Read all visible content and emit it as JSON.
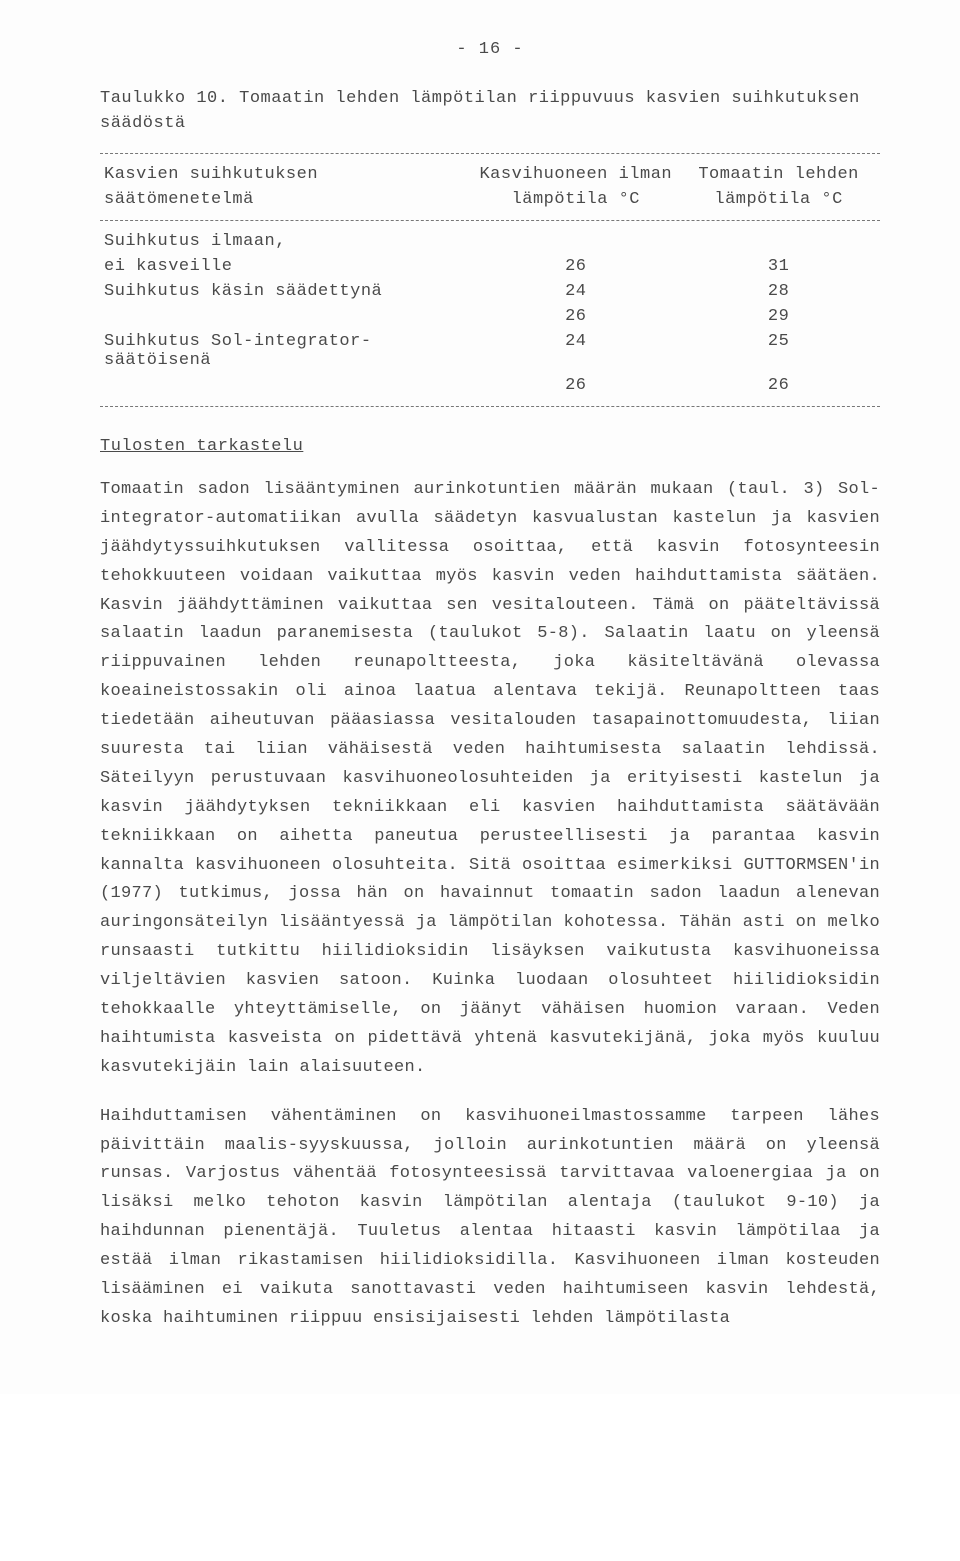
{
  "page_number": "- 16 -",
  "caption_line1": "Taulukko 10.  Tomaatin lehden lämpötilan riippuvuus kasvien suihkutuksen",
  "caption_line2": "säädöstä",
  "table": {
    "header": {
      "method_l1": "Kasvien suihkutuksen",
      "method_l2": "säätömenetelmä",
      "col1_l1": "Kasvihuoneen ilman",
      "col1_l2": "lämpötila °C",
      "col2_l1": "Tomaatin lehden",
      "col2_l2": "lämpötila °C"
    },
    "rows": [
      {
        "method": "Suihkutus ilmaan,",
        "v1": "",
        "v2": ""
      },
      {
        "method": "ei kasveille",
        "v1": "26",
        "v2": "31"
      },
      {
        "method": "Suihkutus käsin säädettynä",
        "v1": "24",
        "v2": "28"
      },
      {
        "method": "",
        "v1": "26",
        "v2": "29"
      },
      {
        "method": "Suihkutus Sol-integrator-säätöisenä",
        "v1": "24",
        "v2": "25"
      },
      {
        "method": "",
        "v1": "26",
        "v2": "26"
      }
    ]
  },
  "section_heading": "Tulosten tarkastelu",
  "para1": "Tomaatin sadon lisääntyminen aurinkotuntien määrän mukaan (taul. 3) Sol-integrator-automatiikan avulla säädetyn kasvualustan kastelun ja kasvien jäähdytyssuihkutuksen vallitessa osoittaa, että kasvin fotosynteesin tehokkuuteen voidaan vaikuttaa myös kasvin veden haihduttamista säätäen. Kasvin jäähdyttäminen vaikuttaa sen vesitalouteen. Tämä on pääteltävissä salaatin laadun paranemisesta (taulukot 5-8). Salaatin laatu on yleensä riippuvainen lehden reunapoltteesta, joka käsiteltävänä olevassa koeaineistossakin oli ainoa laatua alentava tekijä. Reunapoltteen taas tiedetään aiheutuvan pääasiassa vesitalouden tasapainottomuudesta, liian suuresta tai liian vähäisestä veden haihtumisesta salaatin lehdissä. Säteilyyn perustuvaan kasvihuoneolosuhteiden ja erityisesti kastelun ja kasvin jäähdytyksen tekniikkaan eli kasvien haihduttamista säätävään tekniikkaan on aihetta paneutua perusteellisesti ja parantaa kasvin kannalta kasvihuoneen olosuhteita. Sitä osoittaa esimerkiksi GUTTORMSEN'in (1977) tutkimus, jossa hän on havainnut tomaatin sadon laadun alenevan auringonsäteilyn lisääntyessä ja lämpötilan kohotessa. Tähän asti on melko runsaasti tutkittu hiilidioksidin lisäyksen vaikutusta kasvihuoneissa viljeltävien kasvien satoon. Kuinka luodaan olosuhteet hiilidioksidin tehokkaalle yhteyttämiselle, on jäänyt vähäisen huomion varaan. Veden haihtumista kasveista on pidettävä yhtenä kasvutekijänä, joka myös kuuluu kasvutekijäin lain alaisuuteen.",
  "para2": "Haihduttamisen vähentäminen on kasvihuoneilmastossamme tarpeen lähes päivittäin maalis-syyskuussa, jolloin aurinkotuntien määrä on yleensä runsas. Varjostus vähentää fotosynteesissä tarvittavaa valoenergiaa ja on lisäksi melko tehoton kasvin lämpötilan alentaja (taulukot 9-10) ja haihdunnan pienentäjä. Tuuletus alentaa hitaasti kasvin lämpötilaa ja estää ilman rikastamisen hiilidioksidilla. Kasvihuoneen ilman kosteuden lisääminen ei vaikuta sanottavasti veden haihtumiseen kasvin lehdestä, koska haihtuminen riippuu ensisijaisesti lehden lämpötilasta"
}
